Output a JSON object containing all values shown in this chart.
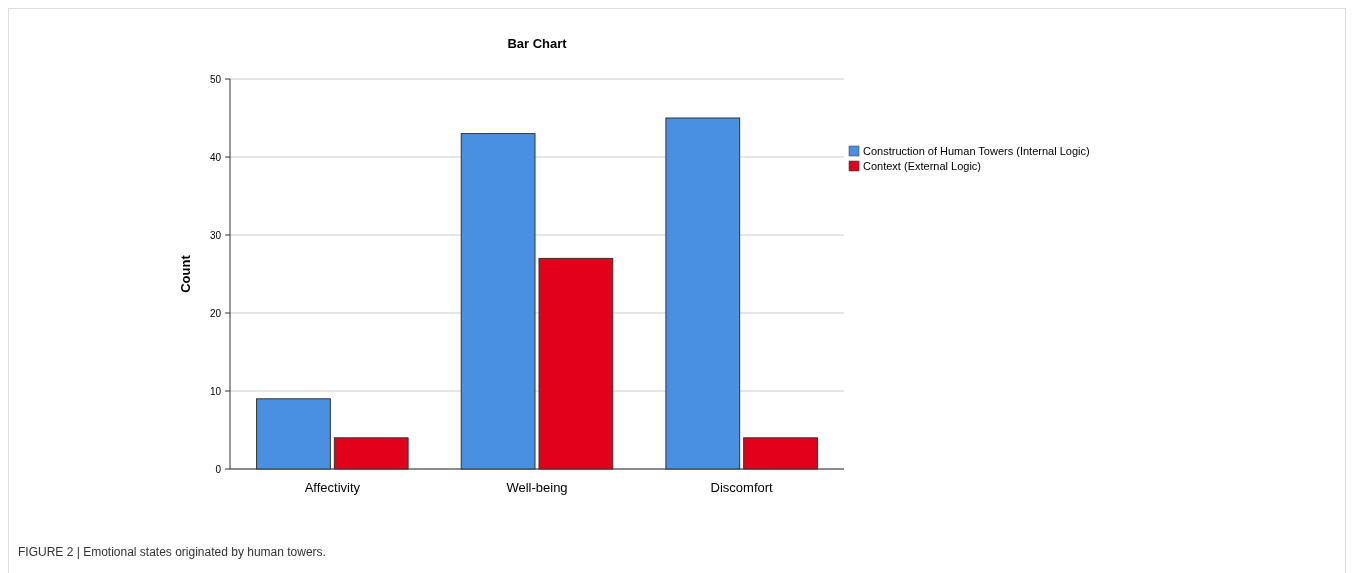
{
  "chart_data": {
    "type": "bar",
    "title": "Bar Chart",
    "ylabel": "Count",
    "categories": [
      "Affectivity",
      "Well-being",
      "Discomfort"
    ],
    "series": [
      {
        "name": "Construction of Human Towers (Internal Logic)",
        "color": "#4a90e2",
        "values": [
          9,
          43,
          45
        ]
      },
      {
        "name": "Context (External Logic)",
        "color": "#e3001b",
        "values": [
          4,
          27,
          4
        ]
      }
    ],
    "ylim": [
      0,
      50
    ],
    "yticks": [
      0,
      10,
      20,
      30,
      40,
      50
    ],
    "grid": "y",
    "legend": "top right",
    "annotations": [
      "FIGURE 2 | Emotional states originated by human towers."
    ]
  }
}
